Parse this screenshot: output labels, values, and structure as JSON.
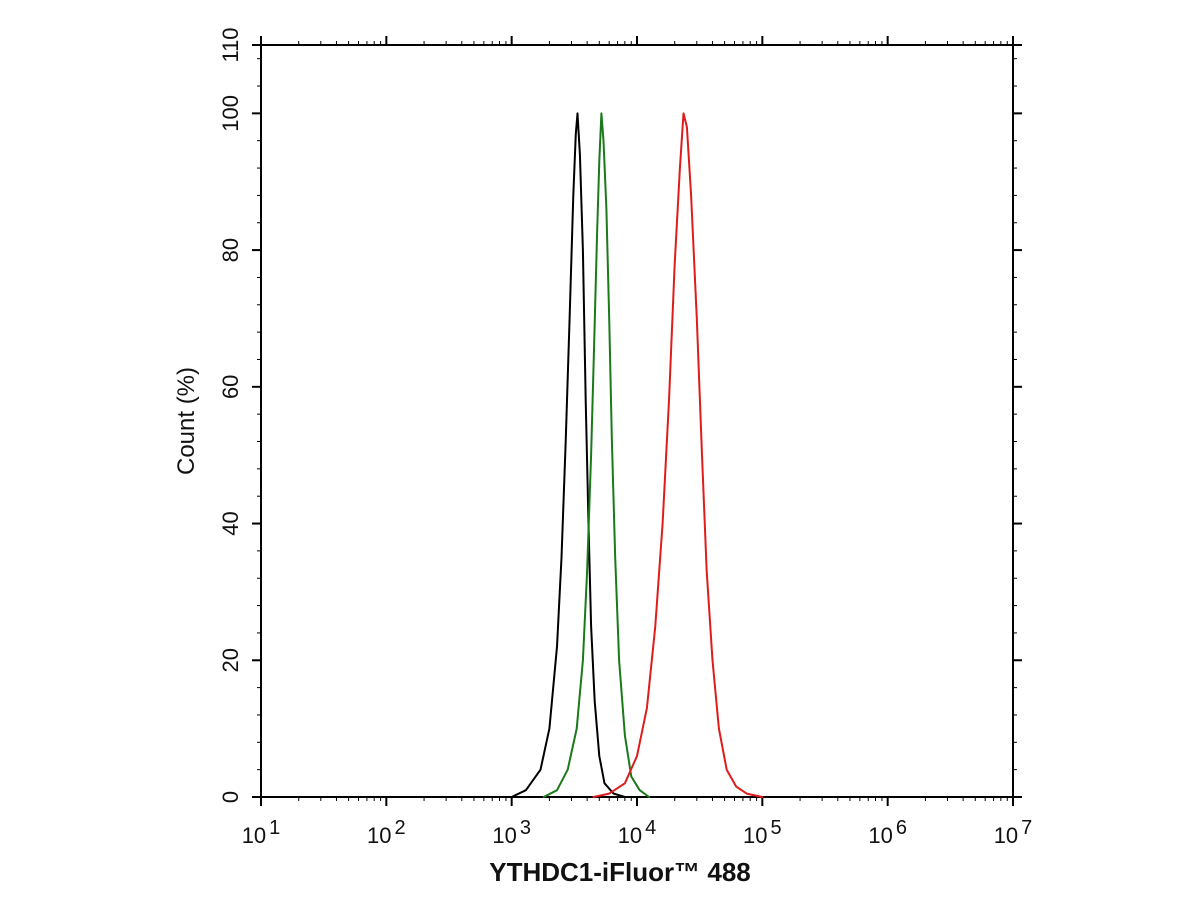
{
  "chart_data": {
    "type": "line",
    "title": "",
    "xlabel": "YTHDC1-iFluor™ 488",
    "ylabel": "Count  (%)",
    "x_scale": "log",
    "xlim": [
      10,
      10000000
    ],
    "ylim": [
      0,
      110
    ],
    "x_ticks": [
      {
        "base": "10",
        "exp": "1"
      },
      {
        "base": "10",
        "exp": "2"
      },
      {
        "base": "10",
        "exp": "3"
      },
      {
        "base": "10",
        "exp": "4"
      },
      {
        "base": "10",
        "exp": "5"
      },
      {
        "base": "10",
        "exp": "6"
      },
      {
        "base": "10",
        "exp": "7"
      }
    ],
    "y_ticks": [
      "0",
      "20",
      "40",
      "60",
      "80",
      "100",
      "110"
    ],
    "grid": false,
    "legend": "none",
    "series": [
      {
        "color": "#000000",
        "x": [
          1000,
          1300,
          1700,
          2000,
          2300,
          2500,
          2700,
          2900,
          3100,
          3250,
          3350,
          3500,
          3700,
          3900,
          4100,
          4300,
          4600,
          5000,
          5500,
          6500,
          8000
        ],
        "y": [
          0,
          1,
          4,
          10,
          22,
          35,
          52,
          70,
          88,
          97,
          100,
          94,
          80,
          58,
          40,
          25,
          14,
          6,
          2,
          0.5,
          0
        ]
      },
      {
        "color": "#1a7a1a",
        "x": [
          1800,
          2300,
          2800,
          3300,
          3700,
          4000,
          4300,
          4550,
          4800,
          5000,
          5200,
          5400,
          5700,
          6000,
          6300,
          6700,
          7200,
          8000,
          9000,
          10500,
          12500
        ],
        "y": [
          0,
          1,
          4,
          10,
          20,
          33,
          50,
          66,
          82,
          93,
          100,
          96,
          86,
          70,
          52,
          35,
          20,
          9,
          3,
          1,
          0
        ]
      },
      {
        "color": "#e01b1b",
        "x": [
          4500,
          6000,
          8000,
          10000,
          12000,
          14000,
          16000,
          18000,
          20000,
          22000,
          23500,
          25000,
          27000,
          30000,
          33000,
          36000,
          40000,
          45000,
          52000,
          62000,
          75000,
          100000
        ],
        "y": [
          0,
          0.5,
          2,
          6,
          13,
          25,
          40,
          58,
          78,
          92,
          100,
          98,
          88,
          70,
          50,
          33,
          20,
          10,
          4,
          1.5,
          0.5,
          0
        ]
      }
    ]
  }
}
